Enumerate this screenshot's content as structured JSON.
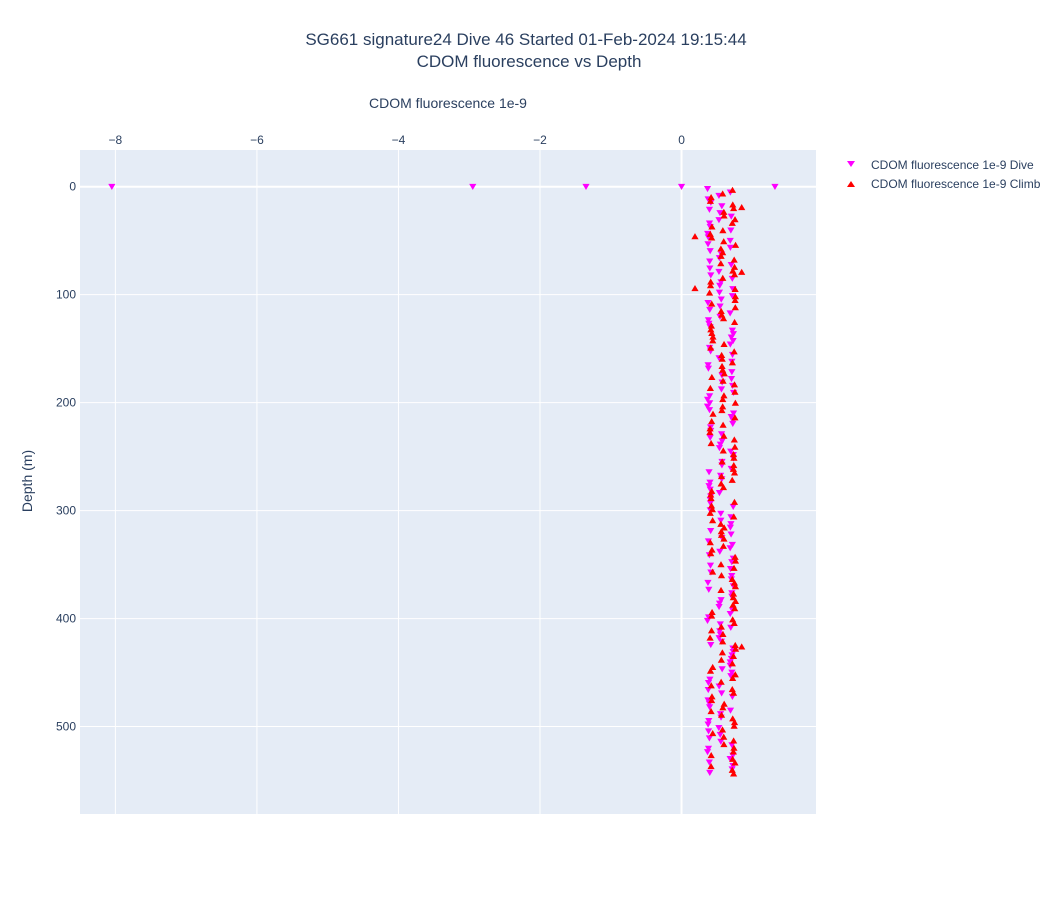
{
  "colors": {
    "plot_bg": "#E5ECF6",
    "grid": "#ffffff",
    "text": "#2a3f5f",
    "dive": "#ff00ff",
    "climb": "#ff0000"
  },
  "chart_data": {
    "type": "scatter",
    "title": "SG661 signature24 Dive 46 Started 01-Feb-2024 19:15:44",
    "subtitle": "CDOM fluorescence vs Depth",
    "xlabel": "CDOM fluorescence 1e-9",
    "ylabel": "Depth (m)",
    "x_axis_position": "top",
    "y_reversed": true,
    "xlim": [
      -8.5,
      1.9
    ],
    "ylim": [
      581,
      -34
    ],
    "x_ticks": [
      -8,
      -6,
      -4,
      -2,
      0
    ],
    "x_tick_labels": [
      "−8",
      "−6",
      "−4",
      "−2",
      "0"
    ],
    "y_ticks": [
      0,
      100,
      200,
      300,
      400,
      500
    ],
    "y_tick_labels": [
      "0",
      "100",
      "200",
      "300",
      "400",
      "500"
    ],
    "grid": true,
    "legend_position": "top-right",
    "series": [
      {
        "name": "CDOM fluorescence 1e-9 Dive",
        "marker": "triangle-down",
        "color": "#ff00ff",
        "outliers": [
          [
            -8.05,
            0
          ],
          [
            -2.95,
            0
          ],
          [
            -1.35,
            0
          ],
          [
            0.0,
            0
          ],
          [
            1.32,
            0
          ]
        ],
        "depth_start": 2,
        "depth_end": 545,
        "depth_step": 3.2,
        "x_center": 0.55,
        "x_spread": 0.16
      },
      {
        "name": "CDOM fluorescence 1e-9 Climb",
        "marker": "triangle-up",
        "color": "#ff0000",
        "outliers": [
          [
            0.85,
            19
          ],
          [
            0.19,
            46
          ],
          [
            0.85,
            79
          ],
          [
            0.19,
            94
          ],
          [
            0.85,
            426
          ]
        ],
        "depth_start": 3,
        "depth_end": 545,
        "depth_step": 3.4,
        "x_center": 0.58,
        "x_spread": 0.16
      }
    ]
  }
}
